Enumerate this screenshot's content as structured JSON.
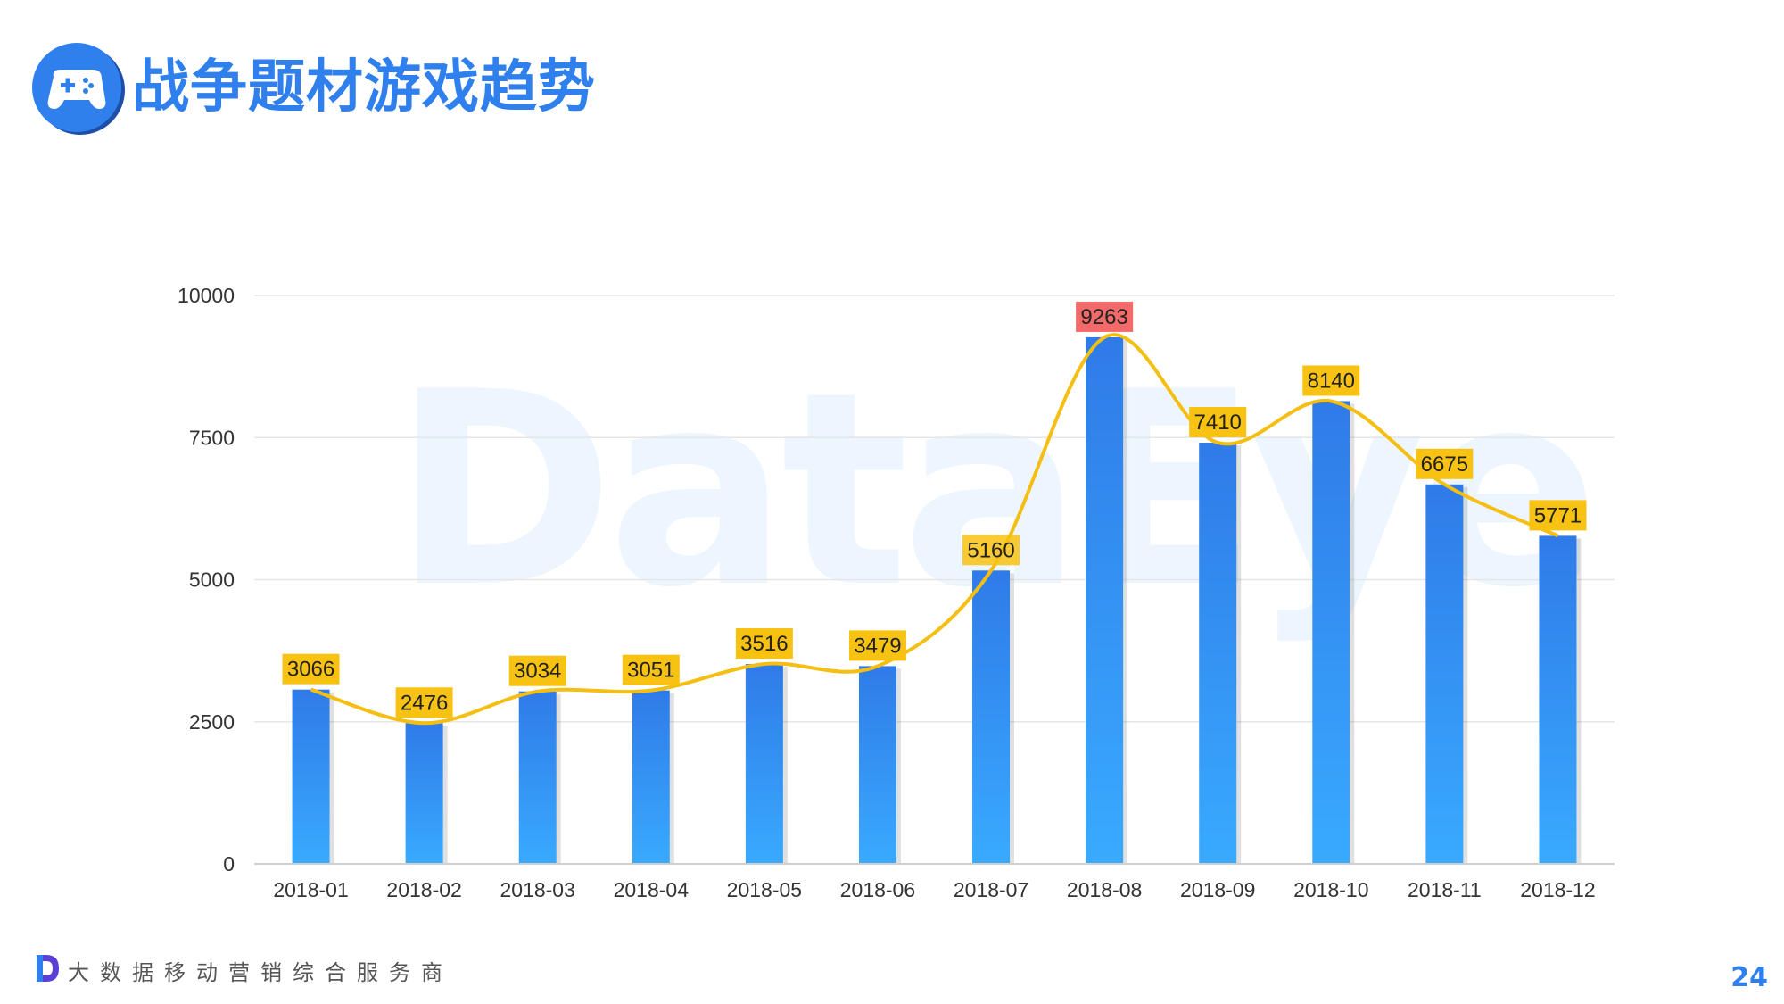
{
  "header": {
    "title": "战争题材游戏趋势",
    "logo_icon": "gamepad-icon"
  },
  "watermark": "DataEye",
  "footer": {
    "logo_icon": "dataeye-d-icon",
    "text": "大数据移动营销综合服务商",
    "page_number": "24"
  },
  "colors": {
    "bar_top": "#2f7be8",
    "bar_bottom": "#39aaff",
    "line": "#f5be12",
    "label_bg": "#f8c212",
    "label_max_bg": "#f46a6a",
    "title": "#2f80ed"
  },
  "chart_data": {
    "type": "bar",
    "categories": [
      "2018-01",
      "2018-02",
      "2018-03",
      "2018-04",
      "2018-05",
      "2018-06",
      "2018-07",
      "2018-08",
      "2018-09",
      "2018-10",
      "2018-11",
      "2018-12"
    ],
    "values": [
      3066,
      2476,
      3034,
      3051,
      3516,
      3479,
      5160,
      9263,
      7410,
      8140,
      6675,
      5771
    ],
    "overlay": "smooth-line",
    "highlight_max": true,
    "ylim": [
      0,
      10000
    ],
    "yticks": [
      0,
      2500,
      5000,
      7500,
      10000
    ],
    "grid": true,
    "title": "",
    "xlabel": "",
    "ylabel": ""
  }
}
